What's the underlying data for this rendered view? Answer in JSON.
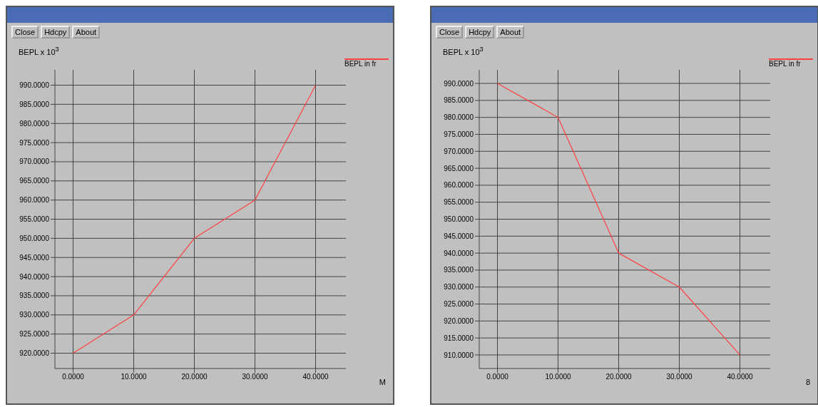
{
  "chart_data": [
    {
      "type": "line",
      "ylabel": "BEPL x 10$^{3}$",
      "xlabel": "M",
      "annotations": [
        "Close",
        "Hdcpy",
        "About"
      ],
      "x": [
        0,
        10,
        20,
        30,
        40
      ],
      "series": [
        {
          "name": "BEPL in fr",
          "color": "#ff4040",
          "values": [
            920,
            930,
            950,
            960,
            990
          ]
        }
      ],
      "xlim": [
        -3,
        45
      ],
      "xticks": [
        {
          "value": 0,
          "label": "0.0000"
        },
        {
          "value": 10,
          "label": "10.0000"
        },
        {
          "value": 20,
          "label": "20.0000"
        },
        {
          "value": 30,
          "label": "30.0000"
        },
        {
          "value": 40,
          "label": "40.0000"
        }
      ],
      "ylim": [
        916,
        994
      ],
      "yticks": [
        {
          "value": 920,
          "label": "920.0000"
        },
        {
          "value": 925,
          "label": "925.0000"
        },
        {
          "value": 930,
          "label": "930.0000"
        },
        {
          "value": 935,
          "label": "935.0000"
        },
        {
          "value": 940,
          "label": "940.0000"
        },
        {
          "value": 945,
          "label": "945.0000"
        },
        {
          "value": 950,
          "label": "950.0000"
        },
        {
          "value": 955,
          "label": "955.0000"
        },
        {
          "value": 960,
          "label": "960.0000"
        },
        {
          "value": 965,
          "label": "965.0000"
        },
        {
          "value": 970,
          "label": "970.0000"
        },
        {
          "value": 975,
          "label": "975.0000"
        },
        {
          "value": 980,
          "label": "980.0000"
        },
        {
          "value": 985,
          "label": "985.0000"
        },
        {
          "value": 990,
          "label": "990.0000"
        }
      ],
      "grid": true,
      "legend": "top right",
      "marker": "none",
      "line_style": "solid"
    },
    {
      "type": "line",
      "ylabel": "BEPL x 10$^{3}$",
      "xlabel": "8",
      "annotations": [
        "Close",
        "Hdcpy",
        "About"
      ],
      "x": [
        0,
        10,
        20,
        30,
        40
      ],
      "series": [
        {
          "name": "BEPL in fr",
          "color": "#ff4040",
          "values": [
            990,
            980,
            940,
            930,
            910
          ]
        }
      ],
      "xlim": [
        -3,
        45
      ],
      "xticks": [
        {
          "value": 0,
          "label": "0.0000"
        },
        {
          "value": 10,
          "label": "10.0000"
        },
        {
          "value": 20,
          "label": "20.0000"
        },
        {
          "value": 30,
          "label": "30.0000"
        },
        {
          "value": 40,
          "label": "40.0000"
        }
      ],
      "ylim": [
        906,
        994
      ],
      "yticks": [
        {
          "value": 910,
          "label": "910.0000"
        },
        {
          "value": 915,
          "label": "915.0000"
        },
        {
          "value": 920,
          "label": "920.0000"
        },
        {
          "value": 925,
          "label": "925.0000"
        },
        {
          "value": 930,
          "label": "930.0000"
        },
        {
          "value": 935,
          "label": "935.0000"
        },
        {
          "value": 940,
          "label": "940.0000"
        },
        {
          "value": 945,
          "label": "945.0000"
        },
        {
          "value": 950,
          "label": "950.0000"
        },
        {
          "value": 955,
          "label": "955.0000"
        },
        {
          "value": 960,
          "label": "960.0000"
        },
        {
          "value": 965,
          "label": "965.0000"
        },
        {
          "value": 970,
          "label": "970.0000"
        },
        {
          "value": 975,
          "label": "975.0000"
        },
        {
          "value": 980,
          "label": "980.0000"
        },
        {
          "value": 985,
          "label": "985.0000"
        },
        {
          "value": 990,
          "label": "990.0000"
        }
      ],
      "grid": true,
      "legend": "top right",
      "marker": "none",
      "line_style": "solid"
    }
  ]
}
